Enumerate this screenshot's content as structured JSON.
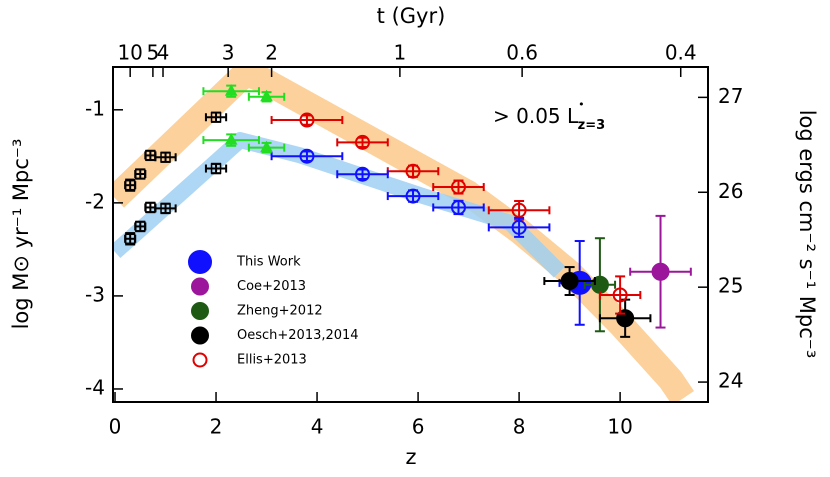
{
  "chart_data": {
    "type": "scatter",
    "xlabel": "z",
    "ylabel": "log M⊙ yr⁻¹ Mpc⁻³",
    "ylabel_color": "#e00000",
    "y2label": "log ergs cm⁻² s⁻¹ Mpc⁻³",
    "y2label_color": "#1010ff",
    "xlim": [
      -0.04,
      11.74
    ],
    "ylim": [
      -4.14,
      -0.54
    ],
    "y2lim": [
      23.79,
      27.32
    ],
    "xticks": [
      0,
      2,
      4,
      6,
      8,
      10
    ],
    "yticks": [
      -4,
      -3,
      -2,
      -1
    ],
    "y2ticks": [
      24,
      25,
      26,
      27
    ],
    "top_axis": {
      "label": "t (Gyr)",
      "ticks": [
        {
          "z": 0.3,
          "t": 10
        },
        {
          "z": 0.75,
          "t": 5
        },
        {
          "z": 0.95,
          "t": 4
        },
        {
          "z": 2.24,
          "t": 3
        },
        {
          "z": 3.1,
          "t": 2
        },
        {
          "z": 5.64,
          "t": 1
        },
        {
          "z": 8.06,
          "t": 0.6
        },
        {
          "z": 11.2,
          "t": 0.4
        }
      ]
    },
    "annotation": {
      "text": "> 0.05 L",
      "sup": "•",
      "sub": "z=3"
    },
    "bands": [
      {
        "color": "#fbc98a",
        "axis": "y",
        "x": [
          0,
          2.6,
          3.0,
          4.5,
          6.0,
          7.0,
          8.0,
          9.0,
          10.0,
          11.0,
          11.25
        ],
        "values": [
          -1.95,
          -0.6,
          -0.7,
          -1.15,
          -1.6,
          -1.9,
          -2.3,
          -2.75,
          -3.3,
          -3.9,
          -4.1
        ]
      },
      {
        "color": "#9fd0f2",
        "axis": "y2",
        "x": [
          0,
          2.48,
          3.66,
          6.04,
          7.82,
          8.8
        ],
        "values": [
          25.37,
          26.55,
          26.39,
          25.97,
          25.68,
          25.16
        ]
      }
    ],
    "series": [
      {
        "name": "This Work",
        "color": "#1010ff",
        "marker": "filled-large",
        "axis": "y",
        "x": [
          9.2
        ],
        "values": [
          -2.86
        ],
        "xerr": [
          0.4
        ],
        "yerr": [
          0.45
        ]
      },
      {
        "name": "Coe+2013",
        "color": "#9b169b",
        "marker": "filled",
        "axis": "y",
        "x": [
          10.8
        ],
        "values": [
          -2.74
        ],
        "xerr": [
          0.6
        ],
        "yerr": [
          0.6
        ]
      },
      {
        "name": "Zheng+2012",
        "color": "#1e5a14",
        "marker": "filled",
        "axis": "y",
        "x": [
          9.6
        ],
        "values": [
          -2.88
        ],
        "xerr": [
          0.3
        ],
        "yerr": [
          0.5
        ]
      },
      {
        "name": "Oesch+2013,2014",
        "color": "#000000",
        "marker": "filled",
        "axis": "y",
        "x": [
          9.0,
          10.1
        ],
        "values": [
          -2.84,
          -3.24
        ],
        "xerr": [
          0.5,
          0.5
        ],
        "yerr": [
          0.15,
          0.2
        ]
      },
      {
        "name": "Ellis+2013",
        "color": "#e00000",
        "marker": "open",
        "axis": "y",
        "x": [
          10.0
        ],
        "values": [
          -2.99
        ],
        "xerr": [
          0.4
        ],
        "yerr": [
          0.2
        ]
      },
      {
        "color": "#e00000",
        "marker": "open",
        "axis": "y",
        "x": [
          3.8,
          4.9,
          5.9,
          6.8,
          8.0
        ],
        "values": [
          -1.11,
          -1.35,
          -1.66,
          -1.83,
          -2.08
        ],
        "xerr": [
          0.7,
          0.5,
          0.5,
          0.5,
          0.6
        ],
        "yerr": [
          0.05,
          0.05,
          0.06,
          0.07,
          0.1
        ]
      },
      {
        "color": "#1010ff",
        "marker": "open",
        "axis": "y2",
        "x": [
          3.8,
          4.9,
          5.9,
          6.8,
          8.0
        ],
        "values": [
          26.38,
          26.19,
          25.96,
          25.84,
          25.63
        ],
        "xerr": [
          0.7,
          0.5,
          0.5,
          0.5,
          0.6
        ],
        "yerr": [
          0.05,
          0.05,
          0.06,
          0.07,
          0.1
        ]
      },
      {
        "color": "#22dd22",
        "marker": "triangle",
        "axis": "y",
        "x": [
          2.3,
          3.0
        ],
        "values": [
          -0.8,
          -0.86
        ],
        "xerr": [
          0.55,
          0.35
        ],
        "yerr": [
          0.06,
          0.05
        ]
      },
      {
        "color": "#22dd22",
        "marker": "triangle",
        "axis": "y2",
        "x": [
          2.3,
          3.0
        ],
        "values": [
          26.55,
          26.47
        ],
        "xerr": [
          0.55,
          0.35
        ],
        "yerr": [
          0.06,
          0.05
        ]
      },
      {
        "color": "#000000",
        "marker": "square",
        "axis": "y",
        "x": [
          0.3,
          0.5,
          0.7,
          1.0,
          2.0
        ],
        "values": [
          -1.81,
          -1.69,
          -1.49,
          -1.51,
          -1.08
        ],
        "xerr": [
          0.1,
          0.1,
          0.1,
          0.2,
          0.2
        ],
        "yerr": [
          0.06,
          0.05,
          0.05,
          0.05,
          0.05
        ]
      },
      {
        "color": "#000000",
        "marker": "square",
        "axis": "y2",
        "x": [
          0.3,
          0.5,
          0.7,
          1.0,
          2.0
        ],
        "values": [
          25.51,
          25.64,
          25.84,
          25.83,
          26.25
        ],
        "xerr": [
          0.1,
          0.1,
          0.1,
          0.2,
          0.2
        ],
        "yerr": [
          0.06,
          0.05,
          0.05,
          0.05,
          0.05
        ]
      }
    ]
  }
}
